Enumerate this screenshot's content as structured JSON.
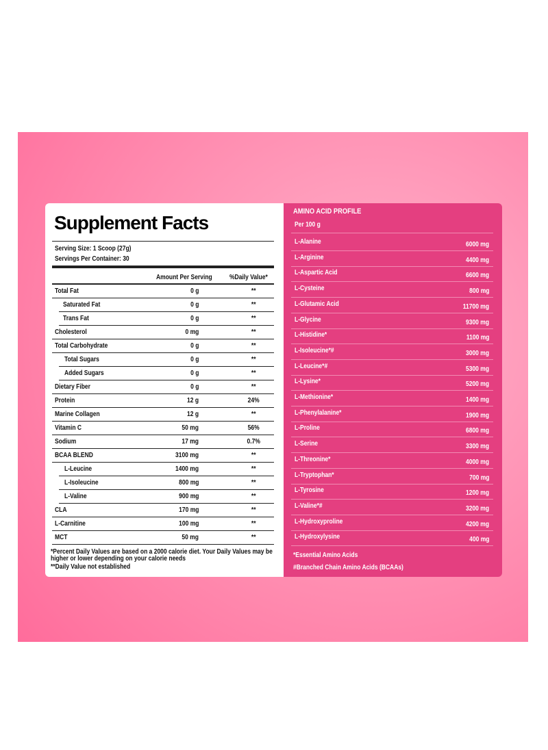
{
  "left": {
    "title": "Supplement Facts",
    "serving_size": "Serving Size: 1 Scoop (27g)",
    "servings_per_container": "Servings Per Container: 30",
    "columns": [
      "Amount Per Serving",
      "%Daily Value*"
    ],
    "rows": [
      [
        "Total Fat",
        "0 g",
        "**"
      ],
      [
        "Saturated Fat",
        "0 g",
        "**"
      ],
      [
        "Trans Fat",
        "0 g",
        "**"
      ],
      [
        "Cholesterol",
        "0 mg",
        "**"
      ],
      [
        "Total Carbohydrate",
        "0 g",
        "**"
      ],
      [
        "Total Sugars",
        "0 g",
        "**"
      ],
      [
        "Added Sugars",
        "0 g",
        "**"
      ],
      [
        "Dietary Fiber",
        "0 g",
        "**"
      ],
      [
        "Protein",
        "12 g",
        "24%"
      ],
      [
        "Marine Collagen",
        "12 g",
        "**"
      ],
      [
        "Vitamin C",
        "50 mg",
        "56%"
      ],
      [
        "Sodium",
        "17 mg",
        "0.7%"
      ],
      [
        "BCAA BLEND",
        "3100 mg",
        "**"
      ],
      [
        "L-Leucine",
        "1400 mg",
        "**"
      ],
      [
        "L-Isoleucine",
        "800 mg",
        "**"
      ],
      [
        "L-Valine",
        "900 mg",
        "**"
      ],
      [
        "CLA",
        "170 mg",
        "**"
      ],
      [
        "L-Carnitine",
        "100 mg",
        "**"
      ],
      [
        "MCT",
        "50 mg",
        "**"
      ]
    ],
    "footnotes": [
      "*Percent Daily Values are based on a 2000 calorie diet. Your Daily Values may be higher or lower depending on your calorie needs",
      "**Daily Value not established"
    ]
  },
  "right": {
    "title": "AMINO ACID PROFILE",
    "subtitle": "Per 100 g",
    "rows": [
      [
        "L-Alanine",
        "6000 mg"
      ],
      [
        "L-Arginine",
        "4400 mg"
      ],
      [
        "L-Aspartic Acid",
        "6600 mg"
      ],
      [
        "L-Cysteine",
        "800 mg"
      ],
      [
        "L-Glutamic Acid",
        "11700 mg"
      ],
      [
        "L-Glycine",
        "9300 mg"
      ],
      [
        "L-Histidine*",
        "1100 mg"
      ],
      [
        "L-Isoleucine*#",
        "3000 mg"
      ],
      [
        "L-Leucine*#",
        "5300 mg"
      ],
      [
        "L-Lysine*",
        "5200 mg"
      ],
      [
        "L-Methionine*",
        "1400 mg"
      ],
      [
        "L-Phenylalanine*",
        "1900 mg"
      ],
      [
        "L-Proline",
        "6800 mg"
      ],
      [
        "L-Serine",
        "3300 mg"
      ],
      [
        "L-Threonine*",
        "4000 mg"
      ],
      [
        "L-Tryptophan*",
        "700 mg"
      ],
      [
        "L-Tyrosine",
        "1200 mg"
      ],
      [
        "L-Valine*#",
        "3200 mg"
      ],
      [
        "L-Hydroxyproline",
        "4200 mg"
      ],
      [
        "L-Hydroxylysine",
        "400 mg"
      ]
    ],
    "footnotes": [
      "*Essential Amino Acids",
      "#Branched Chain Amino Acids (BCAAs)"
    ]
  }
}
